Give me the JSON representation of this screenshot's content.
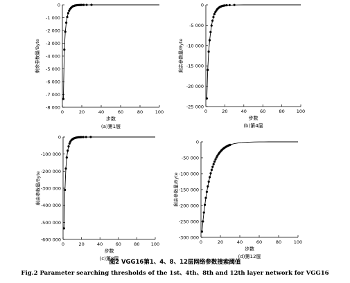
{
  "figure": {
    "caption_cn": "图2   VGG16第1、4、8、12层网络参数搜索阈值",
    "caption_en": "Fig.2    Parameter searching thresholds of the 1st、4th、8th and 12th layer network for VGG16"
  },
  "chart_data": [
    {
      "type": "line",
      "subtitle": "(a)第1层",
      "xlabel": "步数",
      "ylabel": "剩余参数量/Byte",
      "xlim": [
        0,
        100
      ],
      "ylim": [
        -8000,
        0
      ],
      "xticks": [
        0,
        20,
        40,
        60,
        80,
        100
      ],
      "xtick_labels": [
        "0",
        "20",
        "40",
        "60",
        "80",
        "100"
      ],
      "yticks": [
        0,
        -1000,
        -2000,
        -3000,
        -4000,
        -5000,
        -6000,
        -7000,
        -8000
      ],
      "ytick_labels": [
        "0",
        "-1 000",
        "-2 000",
        "-3 000",
        "-4 000",
        "-5 000",
        "-6 000",
        "-7 000",
        "-8 000"
      ],
      "grid": false,
      "series": [
        {
          "x": [
            1,
            2,
            3,
            4,
            5,
            6,
            7,
            8,
            9,
            10,
            11,
            12,
            13,
            14,
            15,
            16,
            17,
            18,
            19,
            20,
            22,
            25,
            30,
            40,
            50,
            60,
            70,
            80,
            90,
            100
          ],
          "y": [
            -7350,
            -3500,
            -2100,
            -1400,
            -950,
            -650,
            -450,
            -320,
            -230,
            -160,
            -110,
            -80,
            -55,
            -40,
            -30,
            -22,
            -16,
            -12,
            -9,
            -7,
            -5,
            -3,
            -2,
            -1,
            -1,
            0,
            0,
            0,
            0,
            0
          ]
        }
      ]
    },
    {
      "type": "line",
      "subtitle": "(b)第4层",
      "xlabel": "步数",
      "ylabel": "剩余参数量/Byte",
      "xlim": [
        0,
        100
      ],
      "ylim": [
        -25000,
        0
      ],
      "xticks": [
        0,
        20,
        40,
        60,
        80,
        100
      ],
      "xtick_labels": [
        "0",
        "20",
        "40",
        "60",
        "80",
        "100"
      ],
      "yticks": [
        0,
        -5000,
        -10000,
        -15000,
        -20000,
        -25000
      ],
      "ytick_labels": [
        "0",
        "-5 000",
        "-10 000",
        "-15 000",
        "-20 000",
        "-25 000"
      ],
      "grid": false,
      "series": [
        {
          "x": [
            1,
            2,
            3,
            4,
            5,
            6,
            7,
            8,
            9,
            10,
            11,
            12,
            13,
            14,
            15,
            16,
            17,
            18,
            19,
            20,
            22,
            25,
            30,
            35,
            40,
            50,
            60,
            70,
            80,
            90,
            100
          ],
          "y": [
            -23000,
            -16000,
            -11500,
            -8700,
            -6700,
            -5100,
            -3900,
            -3000,
            -2300,
            -1800,
            -1400,
            -1100,
            -850,
            -650,
            -500,
            -400,
            -300,
            -240,
            -190,
            -150,
            -100,
            -60,
            -30,
            -15,
            -8,
            -3,
            -1,
            0,
            0,
            0,
            0
          ]
        }
      ]
    },
    {
      "type": "line",
      "subtitle": "(c)第8层",
      "xlabel": "步数",
      "ylabel": "剩余参数量/Byte",
      "xlim": [
        0,
        100
      ],
      "ylim": [
        -600000,
        0
      ],
      "xticks": [
        0,
        20,
        40,
        60,
        80,
        100
      ],
      "xtick_labels": [
        "0",
        "20",
        "40",
        "60",
        "80",
        "100"
      ],
      "yticks": [
        0,
        -100000,
        -200000,
        -300000,
        -400000,
        -500000,
        -600000
      ],
      "ytick_labels": [
        "0",
        "-100 000",
        "-200 000",
        "-300 000",
        "-400 000",
        "-500 000",
        "-600 000"
      ],
      "grid": false,
      "series": [
        {
          "x": [
            1,
            2,
            3,
            4,
            5,
            6,
            7,
            8,
            9,
            10,
            11,
            12,
            13,
            14,
            15,
            16,
            17,
            18,
            19,
            20,
            22,
            25,
            30,
            40,
            50,
            60,
            70,
            80,
            90,
            100
          ],
          "y": [
            -535000,
            -310000,
            -185000,
            -120000,
            -80000,
            -55000,
            -38000,
            -27000,
            -19000,
            -14000,
            -10000,
            -7500,
            -5500,
            -4000,
            -3000,
            -2200,
            -1600,
            -1200,
            -900,
            -700,
            -450,
            -250,
            -100,
            -30,
            -10,
            -3,
            -1,
            0,
            0,
            0
          ]
        }
      ]
    },
    {
      "type": "line",
      "subtitle": "(d)第12层",
      "xlabel": "步数",
      "ylabel": "剩余参数量/Byte",
      "xlim": [
        0,
        100
      ],
      "ylim": [
        -300000,
        0
      ],
      "xticks": [
        0,
        20,
        40,
        60,
        80,
        100
      ],
      "xtick_labels": [
        "0",
        "20",
        "40",
        "60",
        "80",
        "100"
      ],
      "yticks": [
        0,
        -50000,
        -100000,
        -150000,
        -200000,
        -250000,
        -300000
      ],
      "ytick_labels": [
        "0",
        "-50 000",
        "-100 000",
        "-150 000",
        "-200 000",
        "-250 000",
        "-300 000"
      ],
      "grid": false,
      "series": [
        {
          "x": [
            1,
            2,
            3,
            4,
            5,
            6,
            7,
            8,
            9,
            10,
            11,
            12,
            13,
            14,
            15,
            16,
            17,
            18,
            19,
            20,
            21,
            22,
            23,
            24,
            25,
            26,
            27,
            28,
            29,
            30,
            32,
            34,
            36,
            38,
            40,
            42,
            44,
            46,
            48,
            50,
            55,
            60,
            65,
            70,
            75,
            80,
            85,
            90,
            95,
            100
          ],
          "y": [
            -282000,
            -250000,
            -222000,
            -198000,
            -176000,
            -157000,
            -140000,
            -125000,
            -111000,
            -99000,
            -88000,
            -78500,
            -70000,
            -62000,
            -55000,
            -49000,
            -43500,
            -38700,
            -34400,
            -30600,
            -27200,
            -24200,
            -21500,
            -19100,
            -17000,
            -15100,
            -13400,
            -11900,
            -10600,
            -9400,
            -7400,
            -5900,
            -4700,
            -3700,
            -2900,
            -2300,
            -1800,
            -1400,
            -1100,
            -900,
            -500,
            -300,
            -170,
            -100,
            -60,
            -35,
            -20,
            -10,
            -5,
            0
          ]
        }
      ]
    }
  ]
}
